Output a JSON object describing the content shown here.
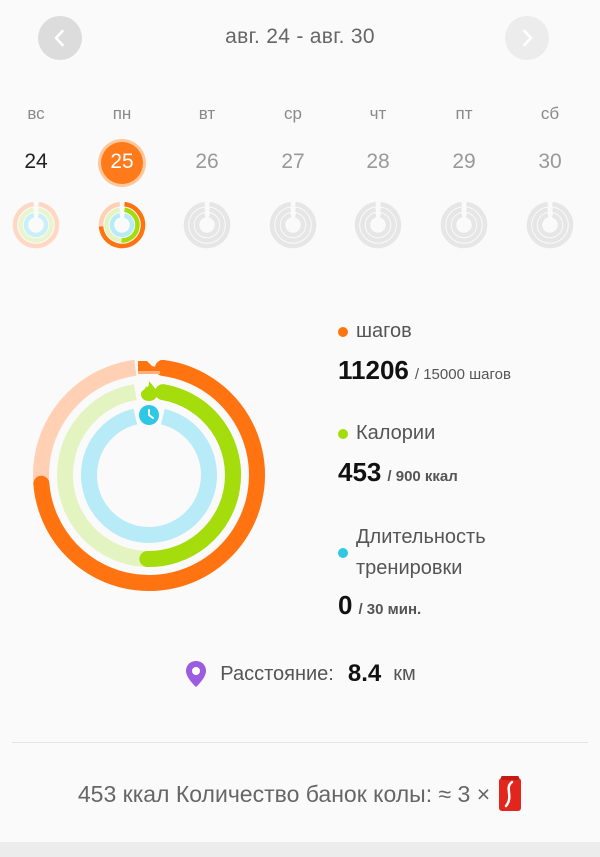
{
  "header": {
    "date_range": "авг. 24 - авг. 30",
    "prev_icon": "chevron-left-icon",
    "next_icon": "chevron-right-icon"
  },
  "week": {
    "days": [
      {
        "dow": "вс",
        "num": "24",
        "state": "past"
      },
      {
        "dow": "пн",
        "num": "25",
        "state": "today"
      },
      {
        "dow": "вт",
        "num": "26",
        "state": "future"
      },
      {
        "dow": "ср",
        "num": "27",
        "state": "future"
      },
      {
        "dow": "чт",
        "num": "28",
        "state": "future"
      },
      {
        "dow": "пт",
        "num": "29",
        "state": "future"
      },
      {
        "dow": "сб",
        "num": "30",
        "state": "future"
      }
    ]
  },
  "stats": {
    "steps": {
      "label": "шагов",
      "value": "11206",
      "goal": "/ 15000 шагов",
      "fraction": 0.747,
      "color": "#ff7410"
    },
    "calories": {
      "label": "Калории",
      "value": "453",
      "goal": "/ 900 ккал",
      "fraction": 0.503,
      "color": "#a4dc0c"
    },
    "duration": {
      "label": "Длительность тренировки",
      "value": "0",
      "goal": "/ 30 мин.",
      "fraction": 0.0,
      "color": "#2ec8e6"
    }
  },
  "distance": {
    "label": "Расстояние:",
    "value": "8.4",
    "unit": "км",
    "icon": "location-pin-icon",
    "icon_color": "#9b5ce0"
  },
  "cola": {
    "text": "453 ккал Количество банок колы: ≈ 3 ×",
    "icon": "cola-can-icon"
  }
}
